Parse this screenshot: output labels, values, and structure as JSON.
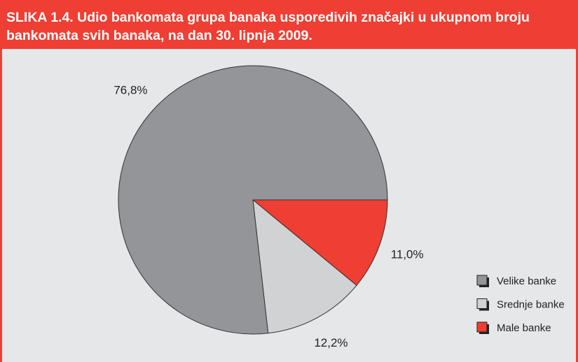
{
  "chart_data": {
    "type": "pie",
    "title": "SLIKA 1.4. Udio bankomata grupa banaka usporedivih značajki u ukupnom broju bankomata svih banaka, na dan 30. lipnja 2009.",
    "categories": [
      "Velike banke",
      "Srednje banke",
      "Male banke"
    ],
    "values": [
      76.8,
      12.2,
      11.0
    ],
    "value_labels": [
      "76,8%",
      "12,2%",
      "11,0%"
    ],
    "colors": [
      "#939598",
      "#d1d2d4",
      "#ef3e33"
    ]
  }
}
